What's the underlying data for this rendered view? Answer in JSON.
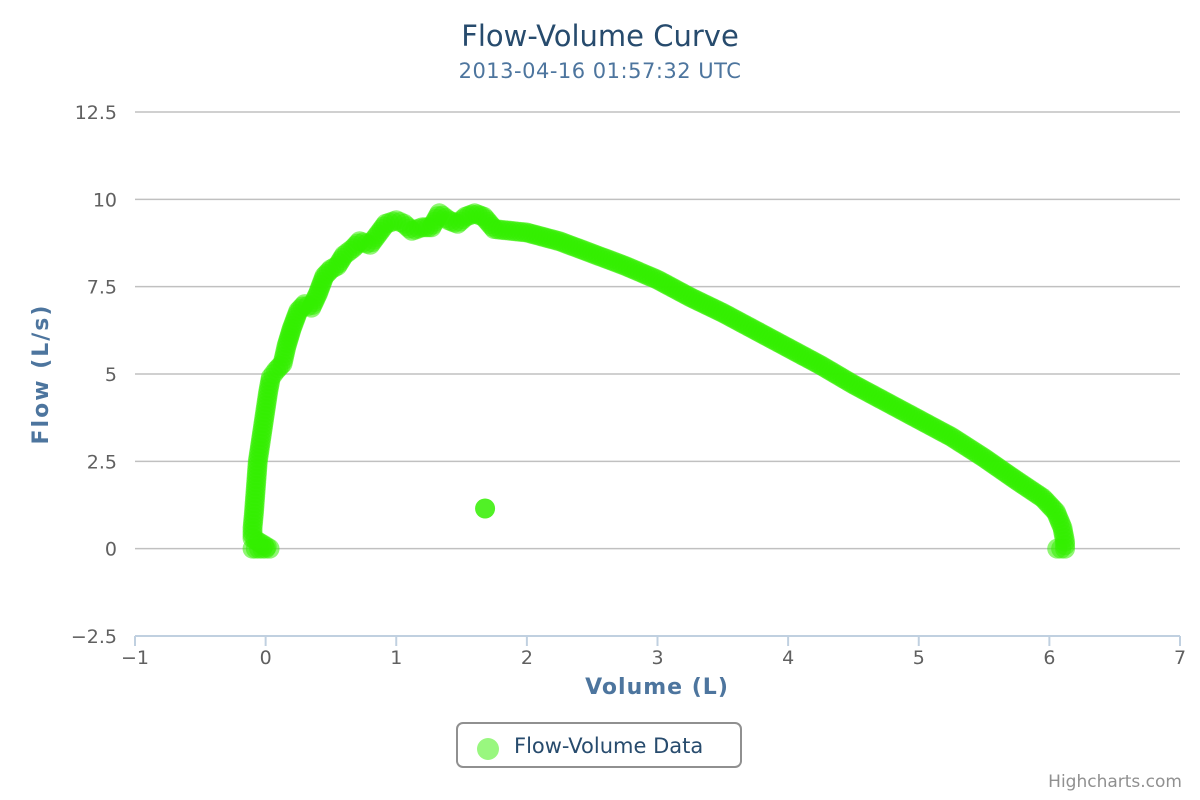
{
  "chart_data": {
    "type": "scatter",
    "title": "Flow-Volume Curve",
    "subtitle": "2013-04-16 01:57:32 UTC",
    "xlabel": "Volume (L)",
    "ylabel": "Flow (L/s)",
    "xlim": [
      -1,
      7
    ],
    "ylim": [
      -2.5,
      12.5
    ],
    "xticks": [
      -1,
      0,
      1,
      2,
      3,
      4,
      5,
      6,
      7
    ],
    "yticks": [
      -2.5,
      0,
      2.5,
      5,
      7.5,
      10,
      12.5
    ],
    "xtick_labels": [
      "−1",
      "0",
      "1",
      "2",
      "3",
      "4",
      "5",
      "6",
      "7"
    ],
    "ytick_labels": [
      "−2.5",
      "0",
      "2.5",
      "5",
      "7.5",
      "10",
      "12.5"
    ],
    "grid": "horizontal",
    "legend_position": "bottom-center",
    "series": [
      {
        "name": "Flow-Volume Data",
        "color": "#33ee00",
        "legend_color": "#99f77f",
        "points": [
          [
            -0.1,
            0
          ],
          [
            -0.05,
            0
          ],
          [
            0,
            0
          ],
          [
            0.03,
            0
          ],
          [
            -0.1,
            0.3
          ],
          [
            -0.1,
            0.6
          ],
          [
            -0.09,
            1.0
          ],
          [
            -0.08,
            1.5
          ],
          [
            -0.07,
            2.0
          ],
          [
            -0.06,
            2.5
          ],
          [
            -0.04,
            3.0
          ],
          [
            -0.02,
            3.5
          ],
          [
            0,
            4.0
          ],
          [
            0.02,
            4.5
          ],
          [
            0.04,
            4.9
          ],
          [
            0.08,
            5.1
          ],
          [
            0.13,
            5.3
          ],
          [
            0.16,
            5.8
          ],
          [
            0.2,
            6.3
          ],
          [
            0.25,
            6.8
          ],
          [
            0.3,
            7.0
          ],
          [
            0.35,
            6.9
          ],
          [
            0.4,
            7.3
          ],
          [
            0.45,
            7.8
          ],
          [
            0.5,
            8.0
          ],
          [
            0.55,
            8.1
          ],
          [
            0.6,
            8.4
          ],
          [
            0.67,
            8.6
          ],
          [
            0.72,
            8.8
          ],
          [
            0.8,
            8.7
          ],
          [
            0.86,
            9.0
          ],
          [
            0.92,
            9.3
          ],
          [
            1.0,
            9.4
          ],
          [
            1.06,
            9.3
          ],
          [
            1.12,
            9.1
          ],
          [
            1.2,
            9.2
          ],
          [
            1.27,
            9.2
          ],
          [
            1.33,
            9.6
          ],
          [
            1.4,
            9.4
          ],
          [
            1.47,
            9.3
          ],
          [
            1.53,
            9.5
          ],
          [
            1.6,
            9.6
          ],
          [
            1.67,
            9.5
          ],
          [
            1.75,
            9.15
          ],
          [
            2.0,
            9.05
          ],
          [
            2.25,
            8.8
          ],
          [
            2.5,
            8.45
          ],
          [
            2.75,
            8.1
          ],
          [
            3.0,
            7.7
          ],
          [
            3.25,
            7.2
          ],
          [
            3.5,
            6.75
          ],
          [
            3.75,
            6.25
          ],
          [
            4.0,
            5.75
          ],
          [
            4.25,
            5.25
          ],
          [
            4.5,
            4.7
          ],
          [
            4.75,
            4.2
          ],
          [
            5.0,
            3.7
          ],
          [
            5.25,
            3.2
          ],
          [
            5.5,
            2.6
          ],
          [
            5.75,
            1.95
          ],
          [
            5.95,
            1.45
          ],
          [
            6.05,
            1.05
          ],
          [
            6.1,
            0.6
          ],
          [
            6.12,
            0.2
          ],
          [
            6.12,
            0
          ],
          [
            6.06,
            0
          ],
          [
            1.68,
            1.15
          ]
        ]
      }
    ]
  },
  "legend": {
    "label": "Flow-Volume Data",
    "marker_color": "#99f77f"
  },
  "credits": "Highcharts.com"
}
